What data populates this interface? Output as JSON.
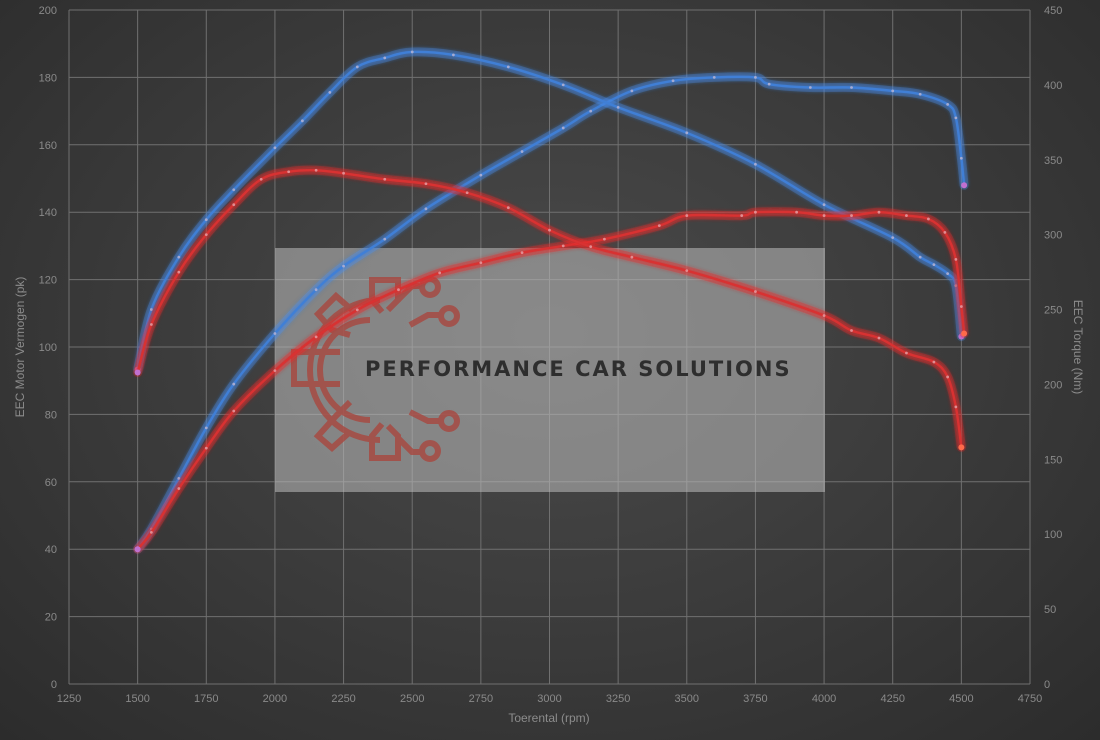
{
  "chart_data": {
    "type": "line",
    "xlabel": "Toerental (rpm)",
    "ylabel_left": "EEC Motor Vermogen (pk)",
    "ylabel_right": "EEC Torque (Nm)",
    "xlim": [
      1250,
      4750
    ],
    "ylim_left": [
      0,
      200
    ],
    "ylim_right": [
      0,
      450
    ],
    "x_ticks": [
      1250,
      1500,
      1750,
      2000,
      2250,
      2500,
      2750,
      3000,
      3250,
      3500,
      3750,
      4000,
      4250,
      4500,
      4750
    ],
    "y_left_ticks": [
      0,
      20,
      40,
      60,
      80,
      100,
      120,
      140,
      160,
      180,
      200
    ],
    "y_right_ticks": [
      0,
      50,
      100,
      150,
      200,
      250,
      300,
      350,
      400,
      450
    ],
    "grid": true,
    "series": [
      {
        "axis": "left",
        "color": "#3f7fd6",
        "glow": "#5a9cff",
        "points": [
          [
            1500,
            40
          ],
          [
            1550,
            46
          ],
          [
            1650,
            61
          ],
          [
            1750,
            76
          ],
          [
            1850,
            89
          ],
          [
            2000,
            104
          ],
          [
            2150,
            117
          ],
          [
            2250,
            124
          ],
          [
            2400,
            132
          ],
          [
            2550,
            141
          ],
          [
            2750,
            151
          ],
          [
            2900,
            158
          ],
          [
            3050,
            165
          ],
          [
            3150,
            170
          ],
          [
            3300,
            176
          ],
          [
            3450,
            179
          ],
          [
            3600,
            180
          ],
          [
            3750,
            180
          ],
          [
            3800,
            178
          ],
          [
            3950,
            177
          ],
          [
            4100,
            177
          ],
          [
            4250,
            176
          ],
          [
            4350,
            175
          ],
          [
            4450,
            172
          ],
          [
            4480,
            168
          ],
          [
            4500,
            156
          ],
          [
            4510,
            148
          ]
        ]
      },
      {
        "axis": "right",
        "color": "#3f7fd6",
        "glow": "#5a9cff",
        "points": [
          [
            1500,
            210
          ],
          [
            1550,
            250
          ],
          [
            1650,
            285
          ],
          [
            1750,
            310
          ],
          [
            1850,
            330
          ],
          [
            2000,
            358
          ],
          [
            2100,
            376
          ],
          [
            2200,
            395
          ],
          [
            2300,
            412
          ],
          [
            2400,
            418
          ],
          [
            2500,
            422
          ],
          [
            2650,
            420
          ],
          [
            2850,
            412
          ],
          [
            3050,
            400
          ],
          [
            3250,
            385
          ],
          [
            3500,
            368
          ],
          [
            3750,
            347
          ],
          [
            4000,
            320
          ],
          [
            4250,
            298
          ],
          [
            4350,
            285
          ],
          [
            4400,
            280
          ],
          [
            4450,
            274
          ],
          [
            4480,
            266
          ],
          [
            4500,
            232
          ]
        ]
      },
      {
        "axis": "left",
        "color": "#d83030",
        "glow": "#ff3030",
        "points": [
          [
            1500,
            40
          ],
          [
            1550,
            45
          ],
          [
            1650,
            58
          ],
          [
            1750,
            70
          ],
          [
            1850,
            81
          ],
          [
            2000,
            93
          ],
          [
            2150,
            103
          ],
          [
            2300,
            111
          ],
          [
            2450,
            117
          ],
          [
            2600,
            122
          ],
          [
            2750,
            125
          ],
          [
            2900,
            128
          ],
          [
            3050,
            130
          ],
          [
            3200,
            132
          ],
          [
            3400,
            136
          ],
          [
            3500,
            139
          ],
          [
            3700,
            139
          ],
          [
            3750,
            140
          ],
          [
            3900,
            140
          ],
          [
            4000,
            139
          ],
          [
            4100,
            139
          ],
          [
            4200,
            140
          ],
          [
            4300,
            139
          ],
          [
            4380,
            138
          ],
          [
            4440,
            134
          ],
          [
            4480,
            126
          ],
          [
            4500,
            112
          ],
          [
            4510,
            104
          ]
        ]
      },
      {
        "axis": "right",
        "color": "#d83030",
        "glow": "#ff3030",
        "points": [
          [
            1500,
            208
          ],
          [
            1550,
            240
          ],
          [
            1650,
            275
          ],
          [
            1750,
            300
          ],
          [
            1850,
            320
          ],
          [
            1950,
            337
          ],
          [
            2050,
            342
          ],
          [
            2150,
            343
          ],
          [
            2250,
            341
          ],
          [
            2400,
            337
          ],
          [
            2550,
            334
          ],
          [
            2700,
            328
          ],
          [
            2850,
            318
          ],
          [
            3000,
            303
          ],
          [
            3150,
            292
          ],
          [
            3300,
            285
          ],
          [
            3500,
            276
          ],
          [
            3750,
            262
          ],
          [
            4000,
            246
          ],
          [
            4100,
            236
          ],
          [
            4200,
            231
          ],
          [
            4300,
            221
          ],
          [
            4400,
            215
          ],
          [
            4450,
            205
          ],
          [
            4480,
            185
          ],
          [
            4500,
            158
          ]
        ]
      }
    ],
    "watermark": {
      "text": "PERFORMANCE CAR SOLUTIONS",
      "icon": "gear-circuit-logo"
    }
  }
}
